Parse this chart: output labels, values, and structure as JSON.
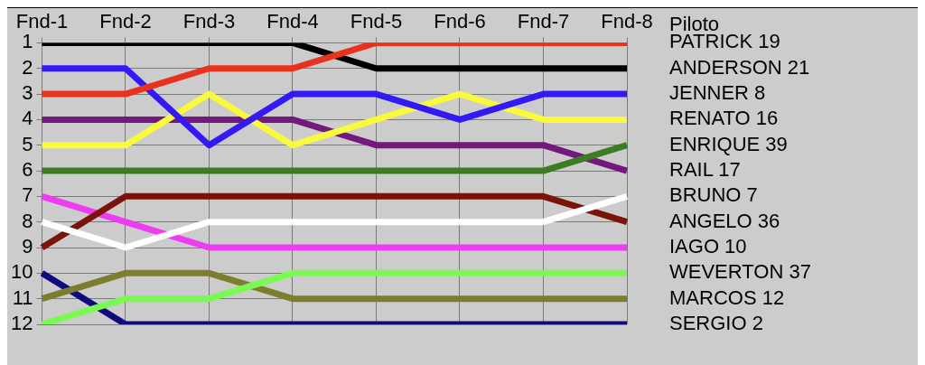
{
  "chart_data": {
    "type": "line",
    "legend_title": "Piloto",
    "categories": [
      "Fnd-1",
      "Fnd-2",
      "Fnd-3",
      "Fnd-4",
      "Fnd-5",
      "Fnd-6",
      "Fnd-7",
      "Fnd-8"
    ],
    "ylim": [
      12,
      1
    ],
    "yticks": [
      1,
      2,
      3,
      4,
      5,
      6,
      7,
      8,
      9,
      10,
      11,
      12
    ],
    "grid": true,
    "legend": false,
    "marker": "none",
    "line_style": "solid",
    "series": [
      {
        "name": "PATRICK 19",
        "color": "#e8321e",
        "values": [
          3,
          3,
          2,
          2,
          1,
          1,
          1,
          1
        ]
      },
      {
        "name": "ANDERSON 21",
        "color": "#000000",
        "values": [
          1,
          1,
          1,
          1,
          2,
          2,
          2,
          2
        ]
      },
      {
        "name": "JENNER 8",
        "color": "#3219f5",
        "values": [
          2,
          2,
          5,
          3,
          3,
          4,
          3,
          3
        ]
      },
      {
        "name": "RENATO 16",
        "color": "#fafa3c",
        "values": [
          5,
          5,
          3,
          5,
          4,
          3,
          4,
          4
        ]
      },
      {
        "name": "ENRIQUE 39",
        "color": "#3c7d23",
        "values": [
          6,
          6,
          6,
          6,
          6,
          6,
          6,
          5
        ]
      },
      {
        "name": "RAIL 17",
        "color": "#73197d",
        "values": [
          4,
          4,
          4,
          4,
          5,
          5,
          5,
          6
        ]
      },
      {
        "name": "BRUNO 7",
        "color": "#ffffff",
        "values": [
          8,
          9,
          8,
          8,
          8,
          8,
          8,
          7
        ]
      },
      {
        "name": "ANGELO 36",
        "color": "#781409",
        "values": [
          9,
          7,
          7,
          7,
          7,
          7,
          7,
          8
        ]
      },
      {
        "name": "IAGO 10",
        "color": "#ee3cf0",
        "values": [
          7,
          8,
          9,
          9,
          9,
          9,
          9,
          9
        ]
      },
      {
        "name": "WEVERTON 37",
        "color": "#78fa50",
        "values": [
          12,
          11,
          11,
          10,
          10,
          10,
          10,
          10
        ]
      },
      {
        "name": "MARCOS 12",
        "color": "#7d7d2d",
        "values": [
          11,
          10,
          10,
          11,
          11,
          11,
          11,
          11
        ]
      },
      {
        "name": "SERGIO 2",
        "color": "#0f0a7d",
        "values": [
          10,
          12,
          12,
          12,
          12,
          12,
          12,
          12
        ]
      }
    ]
  }
}
